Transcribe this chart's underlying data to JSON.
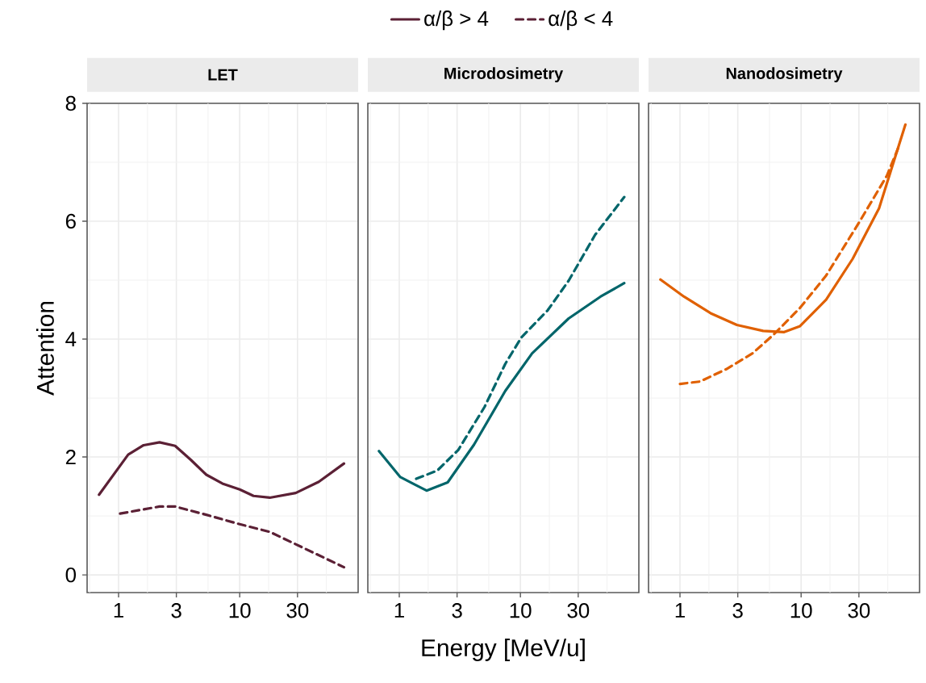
{
  "chart_data": [
    {
      "type": "line",
      "title": "LET",
      "ylabel": "Attention",
      "legend": "top",
      "log": "x",
      "grid": true,
      "xlim": [
        0.55,
        95
      ],
      "ylim": [
        -0.3,
        8
      ],
      "xticks": [
        1,
        3,
        10,
        30
      ],
      "yticks": [
        0,
        2,
        4,
        6,
        8
      ],
      "series": [
        {
          "name": "α/β > 4",
          "color": "#5b2035",
          "line_style": "solid",
          "x": [
            0.69,
            1.2,
            1.61,
            2.18,
            2.93,
            3.96,
            5.3,
            7.2,
            10,
            13,
            17.7,
            29,
            45,
            72.6
          ],
          "values": [
            1.36,
            2.04,
            2.2,
            2.25,
            2.19,
            1.95,
            1.7,
            1.55,
            1.45,
            1.34,
            1.31,
            1.39,
            1.58,
            1.89
          ]
        },
        {
          "name": "α/β < 4",
          "color": "#5b2035",
          "line_style": "dashed",
          "x": [
            1.03,
            2.18,
            2.93,
            5.3,
            10,
            17.7,
            29,
            72.6
          ],
          "values": [
            1.04,
            1.16,
            1.16,
            1.02,
            0.86,
            0.73,
            0.52,
            0.13
          ]
        }
      ]
    },
    {
      "type": "line",
      "title": "Microdosimetry",
      "xlabel": "Energy [MeV/u]",
      "tick_labels": "x",
      "log": "x",
      "grid": true,
      "xlim": [
        0.55,
        95
      ],
      "ylim": [
        -0.3,
        8
      ],
      "xticks": [
        1,
        3,
        10,
        30
      ],
      "yticks": [
        0,
        2,
        4,
        6,
        8
      ],
      "series": [
        {
          "color": "#00656a",
          "line_style": "solid",
          "x": [
            0.68,
            1.02,
            1.68,
            2.51,
            4.14,
            7.5,
            12.5,
            25,
            45.8,
            72
          ],
          "values": [
            2.1,
            1.66,
            1.43,
            1.57,
            2.21,
            3.12,
            3.76,
            4.35,
            4.72,
            4.95
          ]
        },
        {
          "color": "#00656a",
          "line_style": "dashed",
          "x": [
            1.38,
            2.06,
            3.07,
            5.06,
            7.5,
            10.2,
            16.8,
            25,
            41.4,
            72
          ],
          "values": [
            1.63,
            1.77,
            2.12,
            2.85,
            3.58,
            4.03,
            4.49,
            4.99,
            5.77,
            6.41
          ]
        }
      ]
    },
    {
      "type": "line",
      "title": "Nanodosimetry",
      "tick_labels": "x",
      "log": "x",
      "grid": true,
      "xlim": [
        0.55,
        95
      ],
      "ylim": [
        -0.3,
        8
      ],
      "xticks": [
        1,
        3,
        10,
        30
      ],
      "yticks": [
        0,
        2,
        4,
        6,
        8
      ],
      "series": [
        {
          "color": "#e06000",
          "line_style": "solid",
          "x": [
            0.69,
            1.08,
            1.79,
            2.95,
            4.86,
            7.25,
            9.8,
            16.1,
            26.6,
            44,
            72.6
          ],
          "values": [
            5.01,
            4.72,
            4.44,
            4.24,
            4.14,
            4.12,
            4.22,
            4.67,
            5.36,
            6.22,
            7.64
          ]
        },
        {
          "color": "#e06000",
          "line_style": "dashed",
          "x": [
            1.0,
            1.46,
            2.41,
            3.98,
            5.95,
            9.8,
            16.1,
            29.5,
            51,
            65
          ],
          "values": [
            3.24,
            3.28,
            3.49,
            3.76,
            4.08,
            4.53,
            5.08,
            5.95,
            6.77,
            7.3
          ]
        }
      ]
    }
  ]
}
